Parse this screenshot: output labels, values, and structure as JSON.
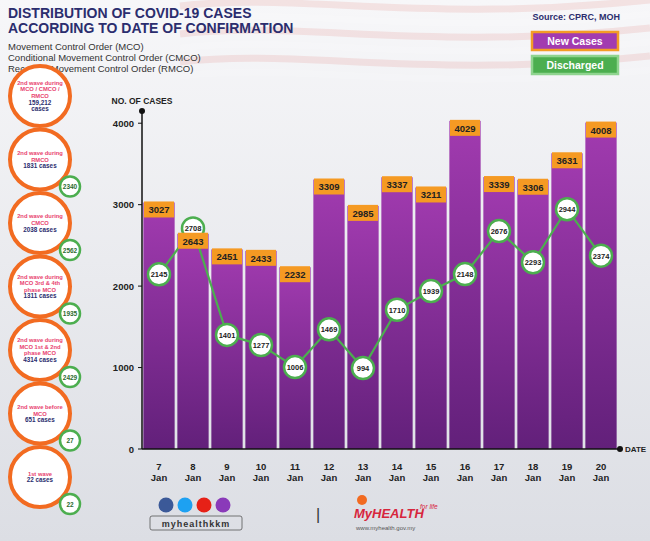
{
  "chart_data": {
    "type": "bar",
    "title": [
      "DISTRIBUTION OF COVID-19 CASES",
      "ACCORDING TO DATE OF CONFIRMATION"
    ],
    "subtitle": [
      "Movement Control Order (MCO)",
      "Conditional Movement Control Order (CMCO)",
      "Recovery Movement Control Order (RMCO)"
    ],
    "source": "Source: CPRC, MOH",
    "xlabel": "DATE",
    "ylabel": "NO. OF CASES",
    "categories": [
      "7 Jan",
      "8 Jan",
      "9 Jan",
      "10 Jan",
      "11 Jan",
      "12 Jan",
      "13 Jan",
      "14 Jan",
      "15 Jan",
      "16 Jan",
      "17 Jan",
      "18 Jan",
      "19 Jan",
      "20 Jan"
    ],
    "series": [
      {
        "name": "New Cases",
        "type": "bar",
        "color": "#a23bb0",
        "values": [
          3027,
          2643,
          2451,
          2433,
          2232,
          3309,
          2985,
          3337,
          3211,
          4029,
          3339,
          3306,
          3631,
          4008
        ]
      },
      {
        "name": "Discharged",
        "type": "line",
        "color": "#4cae4f",
        "marker": "circle",
        "values": [
          2145,
          2708,
          1401,
          1277,
          1006,
          1469,
          994,
          1710,
          1939,
          2148,
          2676,
          2293,
          2944,
          2374
        ]
      }
    ],
    "ylim": [
      0,
      4150
    ],
    "yticks": [
      0,
      1000,
      2000,
      3000,
      4000
    ],
    "grid": false,
    "legend": "upper right",
    "data_labels": true
  },
  "panel": {
    "waves": [
      {
        "text": "2nd wave during MCO / CMCO / RMCO",
        "cases": "159,212 cases"
      },
      {
        "text": "2nd wave during RMCO",
        "cases": "1831 cases",
        "discharged": 2340
      },
      {
        "text": "2nd wave during CMCO",
        "cases": "2038 cases",
        "discharged": 2562
      },
      {
        "text": "2nd wave during MCO 3rd & 4th phase MCO",
        "cases": "1311 cases",
        "discharged": 1935
      },
      {
        "text": "2nd wave during MCO 1st & 2nd phase MCO",
        "cases": "4314 cases",
        "discharged": 2429
      },
      {
        "text": "2nd wave before MCO",
        "cases": "651 cases",
        "discharged": 27
      },
      {
        "text": "1st wave",
        "cases": "22 cases",
        "discharged": 22
      }
    ]
  },
  "footer": {
    "handle": "myhealthkkm",
    "separator": "|",
    "brand": "MyHEALTH",
    "tagline": "for life",
    "url": "www.myhealth.gov.my"
  }
}
